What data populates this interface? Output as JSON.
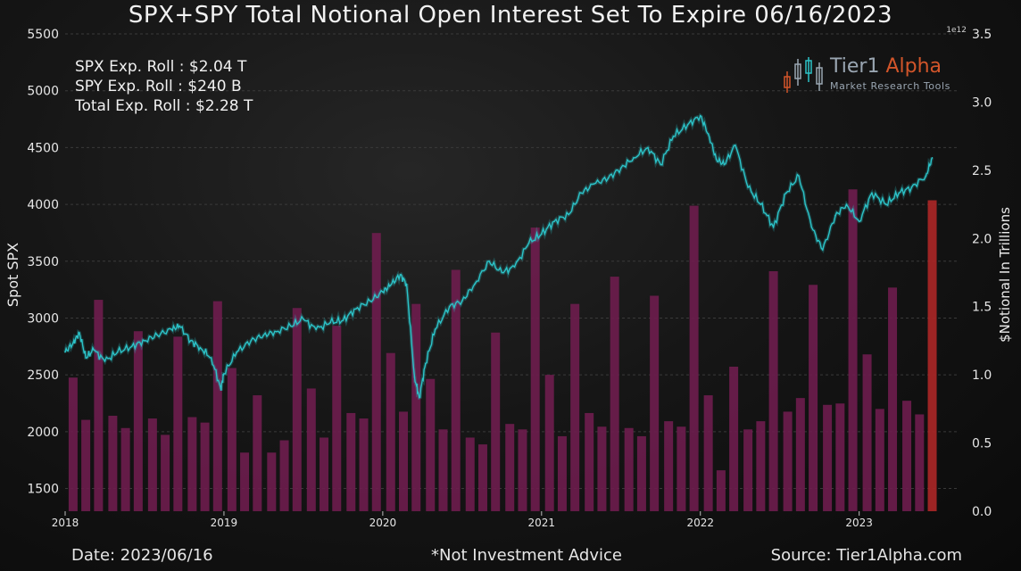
{
  "title": "SPX+SPY Total Notional Open Interest Set To Expire 06/16/2023",
  "stats": {
    "spx": "SPX Exp. Roll : $2.04 T",
    "spy": "SPY Exp. Roll : $240 B",
    "total": "Total Exp. Roll : $2.28 T"
  },
  "logo": {
    "brand_main": "Tier1",
    "brand_accent": "Alpha",
    "tagline": "Market  Research Tools"
  },
  "footer": {
    "date": "Date: 2023/06/16",
    "disclaimer": "*Not Investment Advice",
    "source": "Source: Tier1Alpha.com"
  },
  "colors": {
    "line": "#2cc3c8",
    "bar": "#6e1d4e",
    "bar_highlight": "#a52626",
    "background": "#111111"
  },
  "chart_data": {
    "type": "bar",
    "ylabel_left": "Spot SPX",
    "ylabel_right": "$Notional In Trillions",
    "right_axis_multiplier": "1e12",
    "ylim_left": [
      1300,
      5500
    ],
    "ylim_right": [
      0,
      3.5
    ],
    "xlim": [
      2018.0,
      2023.62
    ],
    "x_ticks": [
      "2018",
      "2019",
      "2020",
      "2021",
      "2022",
      "2023"
    ],
    "y_ticks_left": [
      "1500",
      "2000",
      "2500",
      "3000",
      "3500",
      "4000",
      "4500",
      "5000",
      "5500"
    ],
    "y_ticks_right": [
      "0.0",
      "0.5",
      "1.0",
      "1.5",
      "2.0",
      "2.5",
      "3.0",
      "3.5"
    ],
    "grid": true,
    "series": [
      {
        "name": "Spot SPX",
        "type": "line",
        "x": [
          2018.0,
          2018.05,
          2018.09,
          2018.13,
          2018.18,
          2018.25,
          2018.33,
          2018.42,
          2018.5,
          2018.58,
          2018.67,
          2018.72,
          2018.79,
          2018.85,
          2018.92,
          2018.98,
          2019.0,
          2019.08,
          2019.17,
          2019.25,
          2019.33,
          2019.42,
          2019.5,
          2019.58,
          2019.67,
          2019.75,
          2019.83,
          2019.92,
          2020.0,
          2020.05,
          2020.11,
          2020.15,
          2020.2,
          2020.23,
          2020.27,
          2020.33,
          2020.42,
          2020.5,
          2020.58,
          2020.67,
          2020.75,
          2020.83,
          2020.92,
          2021.0,
          2021.08,
          2021.17,
          2021.25,
          2021.33,
          2021.42,
          2021.5,
          2021.58,
          2021.67,
          2021.75,
          2021.83,
          2021.92,
          2022.0,
          2022.05,
          2022.1,
          2022.15,
          2022.22,
          2022.3,
          2022.38,
          2022.46,
          2022.54,
          2022.62,
          2022.7,
          2022.77,
          2022.85,
          2022.92,
          2023.0,
          2023.08,
          2023.17,
          2023.25,
          2023.33,
          2023.42,
          2023.46
        ],
        "values": [
          2700,
          2780,
          2870,
          2650,
          2720,
          2620,
          2700,
          2750,
          2800,
          2850,
          2900,
          2930,
          2800,
          2740,
          2650,
          2380,
          2510,
          2700,
          2800,
          2850,
          2880,
          2930,
          2990,
          2900,
          2960,
          2980,
          3080,
          3150,
          3230,
          3290,
          3380,
          3300,
          2480,
          2300,
          2600,
          2900,
          3100,
          3150,
          3300,
          3500,
          3400,
          3450,
          3660,
          3740,
          3850,
          3910,
          4100,
          4180,
          4230,
          4320,
          4410,
          4500,
          4350,
          4600,
          4700,
          4780,
          4620,
          4400,
          4350,
          4520,
          4150,
          4000,
          3800,
          4100,
          4250,
          3800,
          3600,
          3900,
          4000,
          3850,
          4100,
          4000,
          4100,
          4150,
          4250,
          4410
        ]
      },
      {
        "name": "$Notional",
        "type": "bar",
        "x": [
          2018.05,
          2018.13,
          2018.21,
          2018.3,
          2018.38,
          2018.46,
          2018.55,
          2018.63,
          2018.71,
          2018.8,
          2018.88,
          2018.96,
          2019.05,
          2019.13,
          2019.21,
          2019.3,
          2019.38,
          2019.46,
          2019.55,
          2019.63,
          2019.71,
          2019.8,
          2019.88,
          2019.96,
          2020.05,
          2020.13,
          2020.21,
          2020.3,
          2020.38,
          2020.46,
          2020.55,
          2020.63,
          2020.71,
          2020.8,
          2020.88,
          2020.96,
          2021.05,
          2021.13,
          2021.21,
          2021.3,
          2021.38,
          2021.46,
          2021.55,
          2021.63,
          2021.71,
          2021.8,
          2021.88,
          2021.96,
          2022.05,
          2022.13,
          2022.21,
          2022.3,
          2022.38,
          2022.46,
          2022.55,
          2022.63,
          2022.71,
          2022.8,
          2022.88,
          2022.96,
          2023.05,
          2023.13,
          2023.21,
          2023.3,
          2023.38,
          2023.46
        ],
        "values": [
          0.98,
          0.67,
          1.55,
          0.7,
          0.61,
          1.32,
          0.68,
          0.56,
          1.28,
          0.69,
          0.65,
          1.54,
          1.05,
          0.43,
          0.85,
          0.43,
          0.52,
          1.49,
          0.9,
          0.54,
          1.36,
          0.72,
          0.68,
          2.04,
          1.16,
          0.73,
          1.52,
          0.97,
          0.6,
          1.77,
          0.54,
          0.49,
          1.31,
          0.64,
          0.6,
          2.08,
          1.0,
          0.55,
          1.52,
          0.72,
          0.62,
          1.72,
          0.61,
          0.55,
          1.58,
          0.66,
          0.62,
          2.24,
          0.85,
          0.3,
          1.06,
          0.6,
          0.66,
          1.76,
          0.73,
          0.83,
          1.66,
          0.78,
          0.79,
          2.36,
          1.15,
          0.75,
          1.64,
          0.81,
          0.71,
          2.28
        ],
        "highlight_index": 65
      }
    ]
  }
}
